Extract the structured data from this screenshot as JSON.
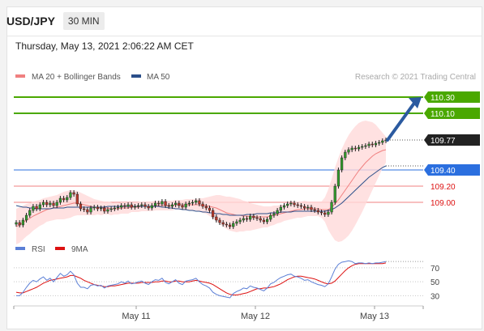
{
  "header": {
    "symbol": "USD/JPY",
    "timeframe": "30 MIN",
    "datetime": "Thursday, May 13, 2021 2:06:22 AM CET"
  },
  "legend": {
    "bollinger": {
      "label": "MA 20 + Bollinger Bands",
      "color": "#f08080"
    },
    "ma50": {
      "label": "MA 50",
      "color": "#2b4f8a"
    },
    "copyright": "Research © 2021 Trading Central"
  },
  "rsi_legend": {
    "rsi": {
      "label": "RSI",
      "color": "#5b7fd6"
    },
    "ma9": {
      "label": "9MA",
      "color": "#dd1111"
    }
  },
  "colors": {
    "resistance": "#4aa800",
    "current": "#222222",
    "support": "#2b6fdf",
    "band": "#ffd9d9",
    "arrow": "#2b5aa0"
  },
  "chart_data": [
    {
      "type": "candlestick",
      "x_ticks": [
        "May 11",
        "May 12",
        "May 13"
      ],
      "ylim": [
        108.55,
        110.45
      ],
      "levels": [
        {
          "value": 110.3,
          "label": "110.30",
          "kind": "resistance"
        },
        {
          "value": 110.1,
          "label": "110.10",
          "kind": "resistance"
        },
        {
          "value": 109.77,
          "label": "109.77",
          "kind": "current"
        },
        {
          "value": 109.4,
          "label": "109.40",
          "kind": "pivot"
        },
        {
          "value": 109.2,
          "label": "109.20",
          "kind": "support"
        },
        {
          "value": 109.0,
          "label": "109.00",
          "kind": "support"
        }
      ],
      "closes": [
        108.75,
        108.72,
        108.78,
        108.84,
        108.9,
        108.95,
        108.92,
        108.97,
        109.0,
        108.97,
        108.99,
        108.96,
        109.0,
        109.05,
        109.03,
        109.06,
        109.12,
        109.1,
        108.98,
        108.92,
        108.91,
        108.88,
        108.93,
        108.94,
        108.92,
        108.93,
        108.89,
        108.91,
        108.92,
        108.93,
        108.94,
        108.96,
        108.95,
        108.97,
        108.94,
        108.95,
        108.96,
        108.97,
        108.95,
        108.93,
        108.96,
        108.99,
        108.98,
        109.01,
        108.96,
        108.95,
        108.97,
        108.99,
        108.96,
        108.94,
        108.98,
        108.99,
        109.0,
        109.02,
        108.98,
        108.95,
        108.93,
        108.9,
        108.82,
        108.78,
        108.75,
        108.73,
        108.72,
        108.7,
        108.74,
        108.76,
        108.78,
        108.8,
        108.79,
        108.83,
        108.81,
        108.8,
        108.78,
        108.76,
        108.79,
        108.84,
        108.86,
        108.9,
        108.94,
        108.96,
        108.98,
        108.99,
        108.97,
        108.96,
        108.95,
        108.93,
        108.94,
        108.91,
        108.9,
        108.88,
        108.87,
        108.85,
        108.88,
        109.0,
        109.2,
        109.4,
        109.55,
        109.62,
        109.65,
        109.67,
        109.66,
        109.68,
        109.69,
        109.7,
        109.72,
        109.71,
        109.73,
        109.74,
        109.76,
        109.77
      ],
      "ma20": [
        108.7,
        108.72,
        108.75,
        108.78,
        108.8,
        108.83,
        108.85,
        108.87,
        108.89,
        108.91,
        108.92,
        108.93,
        108.94,
        108.95,
        108.96,
        108.97,
        108.98,
        108.99,
        108.99,
        108.98,
        108.97,
        108.96,
        108.95,
        108.94,
        108.94,
        108.93,
        108.93,
        108.93,
        108.92,
        108.92,
        108.92,
        108.93,
        108.93,
        108.93,
        108.94,
        108.94,
        108.94,
        108.95,
        108.95,
        108.95,
        108.95,
        108.96,
        108.96,
        108.96,
        108.96,
        108.96,
        108.96,
        108.97,
        108.97,
        108.97,
        108.97,
        108.97,
        108.97,
        108.97,
        108.97,
        108.96,
        108.96,
        108.95,
        108.94,
        108.93,
        108.91,
        108.89,
        108.87,
        108.86,
        108.85,
        108.84,
        108.84,
        108.83,
        108.83,
        108.82,
        108.82,
        108.82,
        108.82,
        108.82,
        108.82,
        108.83,
        108.84,
        108.85,
        108.86,
        108.87,
        108.88,
        108.89,
        108.9,
        108.91,
        108.91,
        108.92,
        108.92,
        108.92,
        108.92,
        108.92,
        108.91,
        108.91,
        108.91,
        108.94,
        108.98,
        109.03,
        109.09,
        109.15,
        109.21,
        109.27,
        109.33,
        109.39,
        109.44,
        109.49,
        109.53,
        109.57,
        109.6,
        109.62,
        109.64,
        109.65
      ],
      "band_width": [
        0.22,
        0.22,
        0.21,
        0.2,
        0.19,
        0.18,
        0.17,
        0.16,
        0.16,
        0.15,
        0.15,
        0.15,
        0.15,
        0.16,
        0.17,
        0.17,
        0.17,
        0.16,
        0.15,
        0.14,
        0.13,
        0.12,
        0.11,
        0.1,
        0.09,
        0.09,
        0.08,
        0.08,
        0.08,
        0.07,
        0.07,
        0.07,
        0.07,
        0.07,
        0.06,
        0.06,
        0.06,
        0.06,
        0.06,
        0.06,
        0.06,
        0.06,
        0.06,
        0.06,
        0.06,
        0.06,
        0.06,
        0.06,
        0.06,
        0.06,
        0.07,
        0.07,
        0.07,
        0.07,
        0.08,
        0.09,
        0.1,
        0.12,
        0.14,
        0.16,
        0.18,
        0.19,
        0.2,
        0.21,
        0.21,
        0.21,
        0.2,
        0.19,
        0.18,
        0.17,
        0.16,
        0.15,
        0.14,
        0.13,
        0.13,
        0.12,
        0.12,
        0.11,
        0.11,
        0.1,
        0.1,
        0.1,
        0.1,
        0.1,
        0.1,
        0.1,
        0.09,
        0.09,
        0.09,
        0.09,
        0.1,
        0.15,
        0.25,
        0.35,
        0.45,
        0.52,
        0.57,
        0.6,
        0.62,
        0.62,
        0.61,
        0.59,
        0.56,
        0.52,
        0.47,
        0.42,
        0.36,
        0.29,
        0.22,
        0.16
      ],
      "ma50": [
        108.96,
        108.95,
        108.94,
        108.94,
        108.93,
        108.93,
        108.92,
        108.92,
        108.92,
        108.92,
        108.92,
        108.93,
        108.93,
        108.93,
        108.93,
        108.94,
        108.94,
        108.94,
        108.94,
        108.94,
        108.94,
        108.94,
        108.94,
        108.94,
        108.94,
        108.94,
        108.94,
        108.95,
        108.95,
        108.95,
        108.95,
        108.95,
        108.95,
        108.95,
        108.95,
        108.95,
        108.95,
        108.95,
        108.95,
        108.95,
        108.95,
        108.95,
        108.95,
        108.94,
        108.94,
        108.93,
        108.93,
        108.92,
        108.92,
        108.91,
        108.91,
        108.9,
        108.9,
        108.89,
        108.89,
        108.88,
        108.88,
        108.87,
        108.87,
        108.86,
        108.86,
        108.85,
        108.85,
        108.84,
        108.84,
        108.84,
        108.84,
        108.84,
        108.85,
        108.85,
        108.85,
        108.86,
        108.86,
        108.86,
        108.86,
        108.87,
        108.87,
        108.87,
        108.88,
        108.88,
        108.88,
        108.88,
        108.89,
        108.89,
        108.89,
        108.89,
        108.89,
        108.89,
        108.89,
        108.89,
        108.89,
        108.89,
        108.9,
        108.91,
        108.93,
        108.96,
        108.99,
        109.03,
        109.07,
        109.11,
        109.15,
        109.19,
        109.23,
        109.27,
        109.31,
        109.34,
        109.37,
        109.4,
        109.43,
        109.45
      ],
      "projection": {
        "from": 109.77,
        "to": 110.3
      }
    },
    {
      "type": "line",
      "title": "RSI",
      "y_ticks": [
        70,
        50,
        30
      ],
      "ylim": [
        20,
        85
      ],
      "series": [
        {
          "name": "RSI",
          "values": [
            30,
            30,
            35,
            42,
            48,
            52,
            50,
            54,
            57,
            52,
            55,
            50,
            56,
            62,
            58,
            60,
            65,
            60,
            48,
            42,
            42,
            40,
            45,
            46,
            44,
            45,
            41,
            44,
            45,
            46,
            47,
            50,
            48,
            51,
            47,
            48,
            50,
            51,
            48,
            46,
            50,
            53,
            52,
            55,
            49,
            47,
            50,
            53,
            48,
            46,
            51,
            52,
            53,
            55,
            50,
            46,
            44,
            41,
            35,
            32,
            30,
            29,
            28,
            27,
            33,
            36,
            38,
            41,
            40,
            44,
            42,
            41,
            39,
            37,
            41,
            47,
            49,
            53,
            56,
            58,
            60,
            61,
            58,
            57,
            55,
            52,
            53,
            50,
            48,
            46,
            45,
            43,
            47,
            57,
            68,
            75,
            78,
            79,
            80,
            79,
            76,
            77,
            77,
            76,
            77,
            76,
            77,
            77,
            78,
            79
          ]
        },
        {
          "name": "9MA",
          "values": [
            35,
            34,
            34,
            36,
            38,
            40,
            42,
            45,
            48,
            50,
            52,
            53,
            54,
            55,
            56,
            57,
            59,
            59,
            57,
            55,
            52,
            50,
            48,
            46,
            45,
            44,
            43,
            43,
            44,
            44,
            45,
            46,
            47,
            48,
            48,
            48,
            48,
            49,
            49,
            49,
            49,
            50,
            50,
            51,
            51,
            50,
            50,
            51,
            51,
            50,
            50,
            50,
            51,
            52,
            51,
            50,
            49,
            48,
            46,
            43,
            40,
            37,
            34,
            32,
            31,
            31,
            32,
            33,
            34,
            36,
            38,
            40,
            40,
            41,
            41,
            42,
            43,
            45,
            47,
            50,
            53,
            55,
            57,
            58,
            58,
            57,
            56,
            55,
            54,
            52,
            50,
            48,
            47,
            48,
            51,
            56,
            61,
            66,
            70,
            73,
            75,
            76,
            76,
            76,
            76,
            76,
            76,
            76,
            76,
            77
          ]
        }
      ]
    }
  ]
}
